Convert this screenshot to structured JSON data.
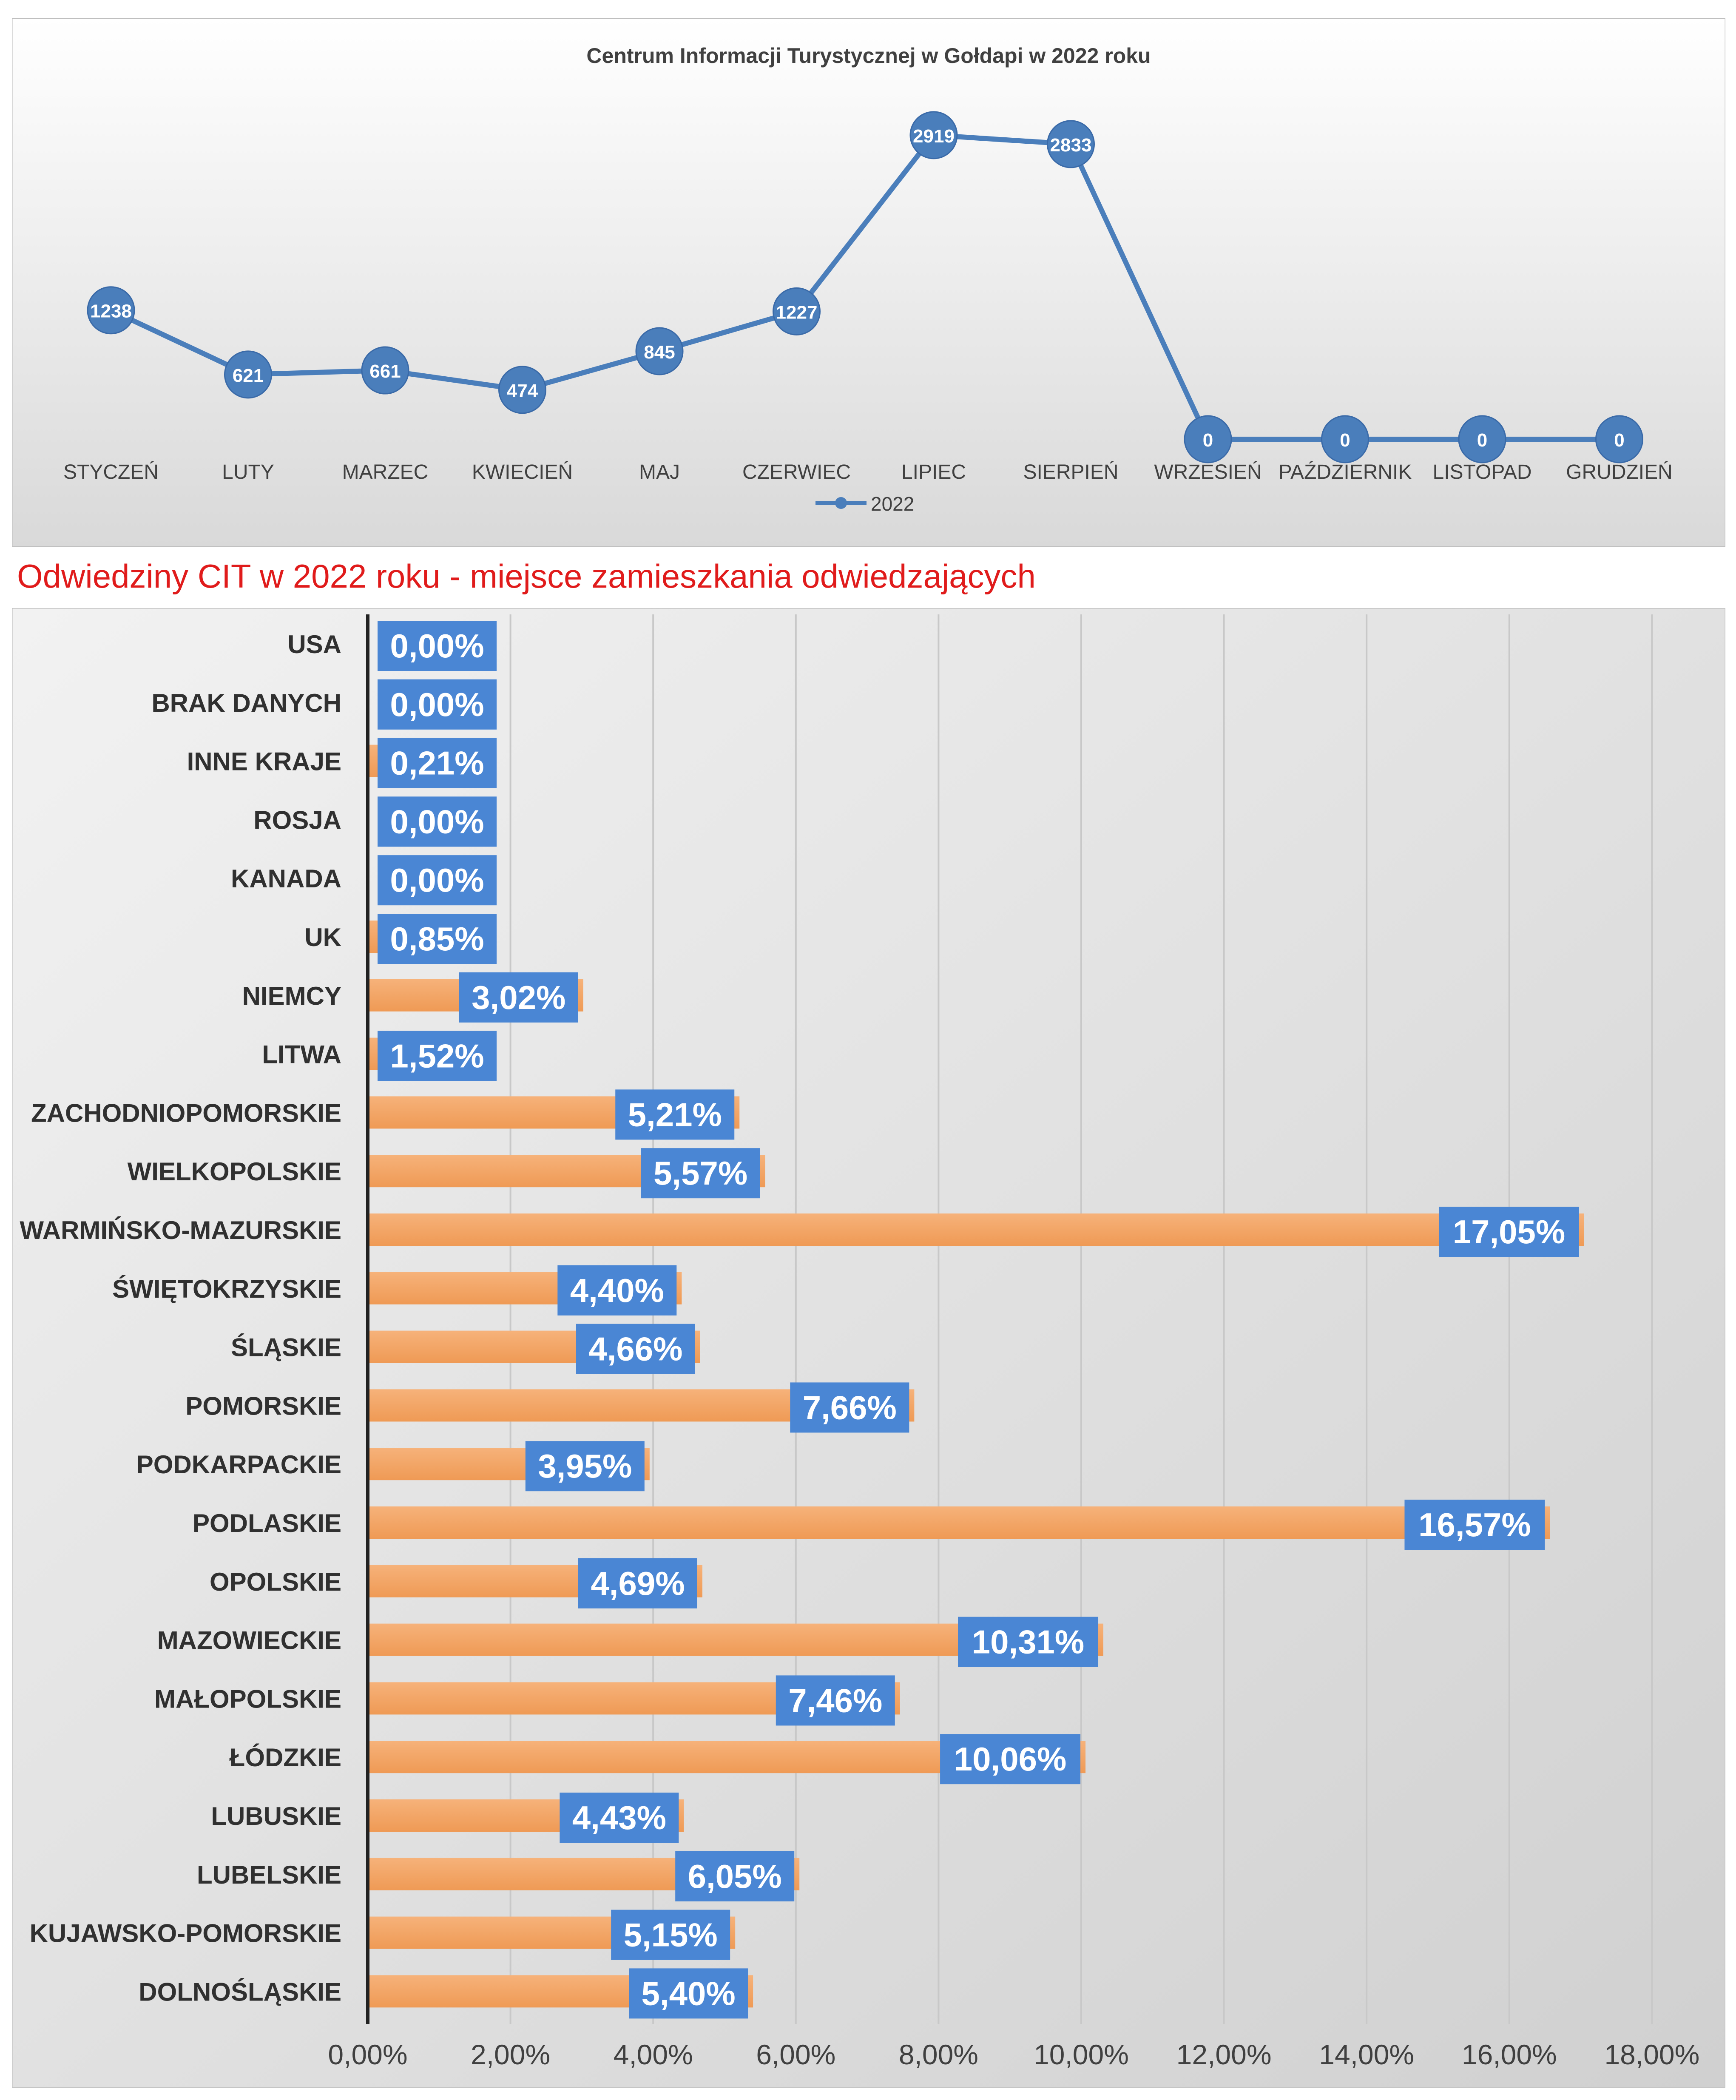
{
  "chart_data": [
    {
      "type": "line",
      "title": "Centrum Informacji Turystycznej w Gołdapi w 2022 roku",
      "categories": [
        "STYCZEŃ",
        "LUTY",
        "MARZEC",
        "KWIECIEŃ",
        "MAJ",
        "CZERWIEC",
        "LIPIEC",
        "SIERPIEŃ",
        "WRZESIEŃ",
        "PAŹDZIERNIK",
        "LISTOPAD",
        "GRUDZIEŃ"
      ],
      "series": [
        {
          "name": "2022",
          "values": [
            1238,
            621,
            661,
            474,
            845,
            1227,
            2919,
            2833,
            0,
            0,
            0,
            0
          ]
        }
      ],
      "legend_position": "bottom",
      "line_color": "#4a7ebb"
    },
    {
      "type": "bar",
      "orientation": "horizontal",
      "title": "Odwiedziny CIT w 2022 roku - miejsce zamieszkania odwiedzających",
      "categories": [
        "USA",
        "BRAK DANYCH",
        "INNE KRAJE",
        "ROSJA",
        "KANADA",
        "UK",
        "NIEMCY",
        "LITWA",
        "ZACHODNIOPOMORSKIE",
        "WIELKOPOLSKIE",
        "WARMIŃSKO-MAZURSKIE",
        "ŚWIĘTOKRZYSKIE",
        "ŚLĄSKIE",
        "POMORSKIE",
        "PODKARPACKIE",
        "PODLASKIE",
        "OPOLSKIE",
        "MAZOWIECKIE",
        "MAŁOPOLSKIE",
        "ŁÓDZKIE",
        "LUBUSKIE",
        "LUBELSKIE",
        "KUJAWSKO-POMORSKIE",
        "DOLNOŚLĄSKIE"
      ],
      "values": [
        0.0,
        0.0,
        0.21,
        0.0,
        0.0,
        0.85,
        3.02,
        1.52,
        5.21,
        5.57,
        17.05,
        4.4,
        4.66,
        7.66,
        3.95,
        16.57,
        4.69,
        10.31,
        7.46,
        10.06,
        4.43,
        6.05,
        5.15,
        5.4
      ],
      "data_labels": [
        "0,00%",
        "0,00%",
        "0,21%",
        "0,00%",
        "0,00%",
        "0,85%",
        "3,02%",
        "1,52%",
        "5,21%",
        "5,57%",
        "17,05%",
        "4,40%",
        "4,66%",
        "7,66%",
        "3,95%",
        "16,57%",
        "4,69%",
        "10,31%",
        "7,46%",
        "10,06%",
        "4,43%",
        "6,05%",
        "5,15%",
        "5,40%"
      ],
      "xlim": [
        0,
        18
      ],
      "xticks": [
        "0,00%",
        "2,00%",
        "4,00%",
        "6,00%",
        "8,00%",
        "10,00%",
        "12,00%",
        "14,00%",
        "16,00%",
        "18,00%"
      ],
      "grid": "vertical",
      "bar_color": "#f4a460",
      "label_color": "#4a86d4"
    }
  ]
}
